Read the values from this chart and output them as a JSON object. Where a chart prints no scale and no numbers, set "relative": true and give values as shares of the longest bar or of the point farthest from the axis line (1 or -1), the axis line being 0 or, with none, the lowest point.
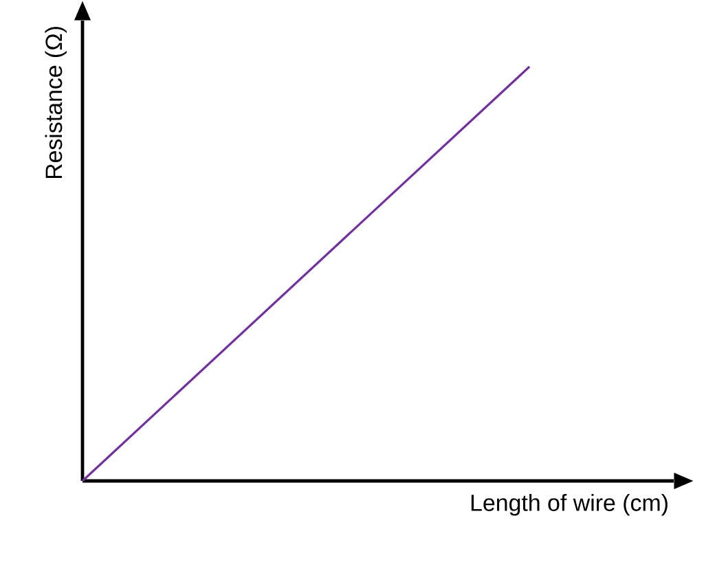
{
  "chart_data": {
    "type": "line",
    "relative": true,
    "xlabel": "Length of wire (cm)",
    "ylabel": "Resistance (Ω)",
    "categories": [
      null,
      null
    ],
    "series": [
      {
        "color": "#7030a0",
        "values": [
          0,
          1
        ]
      }
    ],
    "marker": "none",
    "line_style": "solid"
  }
}
